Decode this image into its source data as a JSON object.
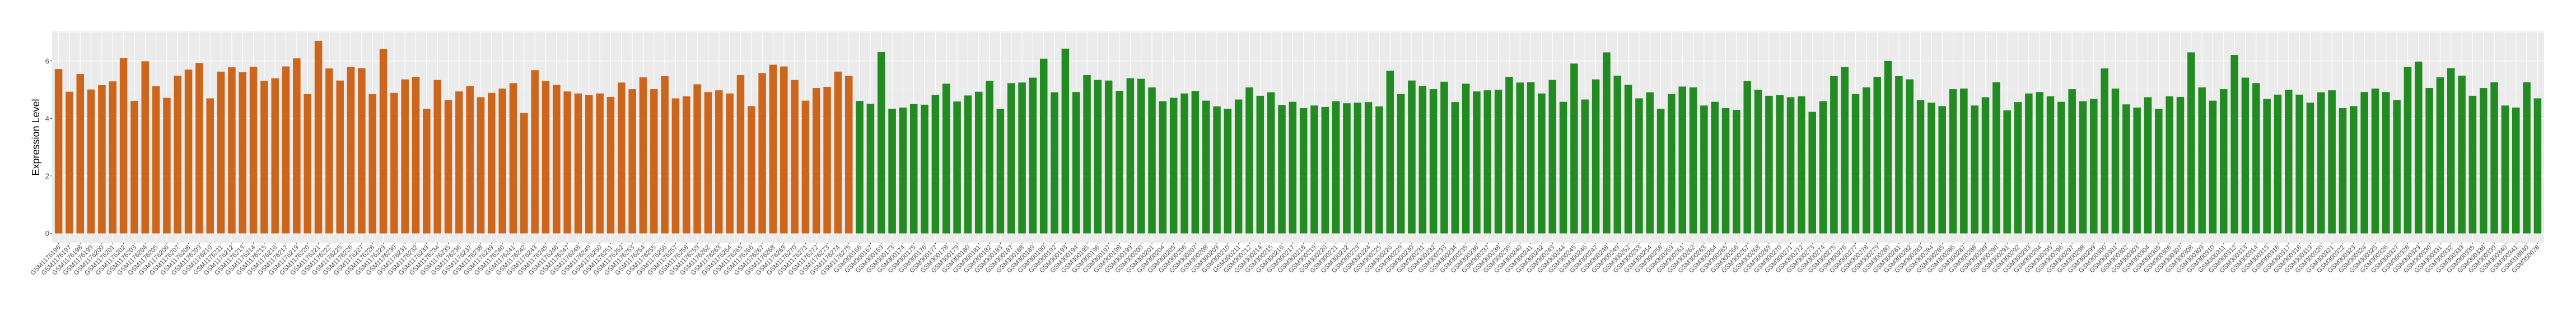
{
  "chart_data": {
    "type": "bar",
    "title": "",
    "xlabel": "",
    "ylabel": "Expression Level",
    "ylim": [
      -0.32,
      7.03
    ],
    "yticks": [
      "0",
      "2",
      "4",
      "6"
    ],
    "grid": true,
    "legend": "none",
    "panel_background": "#EBEBEB",
    "series": [
      {
        "color": "#CD661D",
        "categories": [
          "GSM1176196",
          "GSM1176197",
          "GSM1176198",
          "GSM1176199",
          "GSM1176200",
          "GSM1176201",
          "GSM1176202",
          "GSM1176203",
          "GSM1176204",
          "GSM1176205",
          "GSM1176206",
          "GSM1176207",
          "GSM1176208",
          "GSM1176209",
          "GSM1176210",
          "GSM1176211",
          "GSM1176212",
          "GSM1176213",
          "GSM1176214",
          "GSM1176215",
          "GSM1176216",
          "GSM1176217",
          "GSM1176219",
          "GSM1176220",
          "GSM1176221",
          "GSM1176222",
          "GSM1176225",
          "GSM1176226",
          "GSM1176227",
          "GSM1176228",
          "GSM1176229",
          "GSM1176230",
          "GSM1176231",
          "GSM1176232",
          "GSM1176233",
          "GSM1176234",
          "GSM1176235",
          "GSM1176236",
          "GSM1176237",
          "GSM1176238",
          "GSM1176239",
          "GSM1176240",
          "GSM1176241",
          "GSM1176242",
          "GSM1176243",
          "GSM1176245",
          "GSM1176246",
          "GSM1176247",
          "GSM1176248",
          "GSM1176249",
          "GSM1176250",
          "GSM1176251",
          "GSM1176252",
          "GSM1176253",
          "GSM1176254",
          "GSM1176255",
          "GSM1176256",
          "GSM1176257",
          "GSM1176258",
          "GSM1176259",
          "GSM1176262",
          "GSM1176263",
          "GSM1176264",
          "GSM1176265",
          "GSM1176266",
          "GSM1176267",
          "GSM1176268",
          "GSM1176269",
          "GSM1176270",
          "GSM1176271",
          "GSM1176272",
          "GSM1176273",
          "GSM1176274",
          "GSM1176275"
        ],
        "values": [
          5.72,
          4.93,
          5.55,
          5.01,
          5.16,
          5.29,
          6.1,
          4.61,
          5.99,
          5.12,
          4.72,
          5.49,
          5.7,
          5.93,
          4.7,
          5.63,
          5.78,
          5.61,
          5.8,
          5.31,
          5.4,
          5.81,
          6.09,
          4.85,
          6.7,
          5.74,
          5.32,
          5.79,
          5.75,
          4.85,
          6.42,
          4.89,
          5.36,
          5.45,
          4.34,
          5.34,
          4.64,
          4.94,
          5.13,
          4.74,
          4.89,
          5.04,
          5.23,
          4.19,
          5.68,
          5.3,
          5.17,
          4.94,
          4.87,
          4.81,
          4.87,
          4.75,
          5.25,
          5.02,
          5.43,
          5.02,
          5.47,
          4.7,
          4.77,
          5.19,
          4.92,
          4.98,
          4.87,
          5.51,
          4.43,
          5.58,
          5.87,
          5.81,
          5.34,
          4.62,
          5.06,
          5.1,
          5.63,
          5.48
        ]
      },
      {
        "color": "#228B22",
        "categories": [
          "GSM300166",
          "GSM300167",
          "GSM300169",
          "GSM300173",
          "GSM300174",
          "GSM300175",
          "GSM300176",
          "GSM300177",
          "GSM300178",
          "GSM300179",
          "GSM300180",
          "GSM300181",
          "GSM300182",
          "GSM300183",
          "GSM300187",
          "GSM300188",
          "GSM300189",
          "GSM300190",
          "GSM300192",
          "GSM300193",
          "GSM300194",
          "GSM300195",
          "GSM300196",
          "GSM300197",
          "GSM300198",
          "GSM300199",
          "GSM300200",
          "GSM300201",
          "GSM300204",
          "GSM300205",
          "GSM300206",
          "GSM300207",
          "GSM300208",
          "GSM300209",
          "GSM300210",
          "GSM300211",
          "GSM300212",
          "GSM300214",
          "GSM300215",
          "GSM300216",
          "GSM300217",
          "GSM300218",
          "GSM300219",
          "GSM300220",
          "GSM300221",
          "GSM300222",
          "GSM300223",
          "GSM300224",
          "GSM300225",
          "GSM300226",
          "GSM300229",
          "GSM300230",
          "GSM300231",
          "GSM300232",
          "GSM300233",
          "GSM300234",
          "GSM300235",
          "GSM300236",
          "GSM300237",
          "GSM300238",
          "GSM300239",
          "GSM300240",
          "GSM300241",
          "GSM300242",
          "GSM300243",
          "GSM300244",
          "GSM300245",
          "GSM300246",
          "GSM300247",
          "GSM300248",
          "GSM300249",
          "GSM300252",
          "GSM300253",
          "GSM300254",
          "GSM300258",
          "GSM300259",
          "GSM300261",
          "GSM300262",
          "GSM300263",
          "GSM300264",
          "GSM300265",
          "GSM300266",
          "GSM300267",
          "GSM300268",
          "GSM300269",
          "GSM300270",
          "GSM300271",
          "GSM300272",
          "GSM300273",
          "GSM300274",
          "GSM300275",
          "GSM300276",
          "GSM300277",
          "GSM300278",
          "GSM300279",
          "GSM300280",
          "GSM300281",
          "GSM300282",
          "GSM300283",
          "GSM300284",
          "GSM300285",
          "GSM300286",
          "GSM300287",
          "GSM300288",
          "GSM300289",
          "GSM300290",
          "GSM300291",
          "GSM300292",
          "GSM300293",
          "GSM300294",
          "GSM300295",
          "GSM300296",
          "GSM300297",
          "GSM300298",
          "GSM300299",
          "GSM300300",
          "GSM300301",
          "GSM300302",
          "GSM300303",
          "GSM300304",
          "GSM300305",
          "GSM300306",
          "GSM300307",
          "GSM300308",
          "GSM300309",
          "GSM300310",
          "GSM300311",
          "GSM300312",
          "GSM300313",
          "GSM300314",
          "GSM300315",
          "GSM300316",
          "GSM300317",
          "GSM300318",
          "GSM300319",
          "GSM300320",
          "GSM300321",
          "GSM300322",
          "GSM300323",
          "GSM300324",
          "GSM300325",
          "GSM300326",
          "GSM300327",
          "GSM300328",
          "GSM300329",
          "GSM300330",
          "GSM300331",
          "GSM300332",
          "GSM300333",
          "GSM300335",
          "GSM300338",
          "GSM300339",
          "GSM300340",
          "GSM300341",
          "GSM318840",
          "GSM350078"
        ],
        "values": [
          4.61,
          4.51,
          6.31,
          4.34,
          4.38,
          4.5,
          4.48,
          4.82,
          5.21,
          4.59,
          4.8,
          4.93,
          5.31,
          4.34,
          5.23,
          5.25,
          5.42,
          6.08,
          4.91,
          6.43,
          4.92,
          5.51,
          5.34,
          5.32,
          4.96,
          5.4,
          5.38,
          5.08,
          4.6,
          4.72,
          4.87,
          4.96,
          4.62,
          4.42,
          4.34,
          4.66,
          5.08,
          4.79,
          4.91,
          4.47,
          4.58,
          4.36,
          4.45,
          4.4,
          4.6,
          4.53,
          4.55,
          4.57,
          4.42,
          5.66,
          4.85,
          5.32,
          5.13,
          5.02,
          5.28,
          4.57,
          5.21,
          4.94,
          4.98,
          5.0,
          5.45,
          5.25,
          5.26,
          4.87,
          5.34,
          4.58,
          5.91,
          4.66,
          5.36,
          6.3,
          5.49,
          5.17,
          4.7,
          4.91,
          4.34,
          4.85,
          5.11,
          5.08,
          4.45,
          4.58,
          4.36,
          4.3,
          5.3,
          5.0,
          4.79,
          4.81,
          4.74,
          4.77,
          4.23,
          4.6,
          5.47,
          5.79,
          4.85,
          5.08,
          5.45,
          6.0,
          5.47,
          5.36,
          4.64,
          4.55,
          4.43,
          5.02,
          5.04,
          4.45,
          4.74,
          5.26,
          4.28,
          4.57,
          4.87,
          4.92,
          4.77,
          4.58,
          5.02,
          4.6,
          4.68,
          5.74,
          5.04,
          4.49,
          4.38,
          4.74,
          4.34,
          4.77,
          4.75,
          6.3,
          5.08,
          4.62,
          5.02,
          6.21,
          5.42,
          5.23,
          4.68,
          4.83,
          5.0,
          4.83,
          4.55,
          4.91,
          4.98,
          4.36,
          4.43,
          4.92,
          5.04,
          4.92,
          4.64,
          5.79,
          5.98,
          5.06,
          5.43,
          5.75,
          5.49,
          4.79,
          5.06,
          5.26,
          4.45,
          4.38,
          5.26,
          4.7
        ]
      }
    ]
  }
}
